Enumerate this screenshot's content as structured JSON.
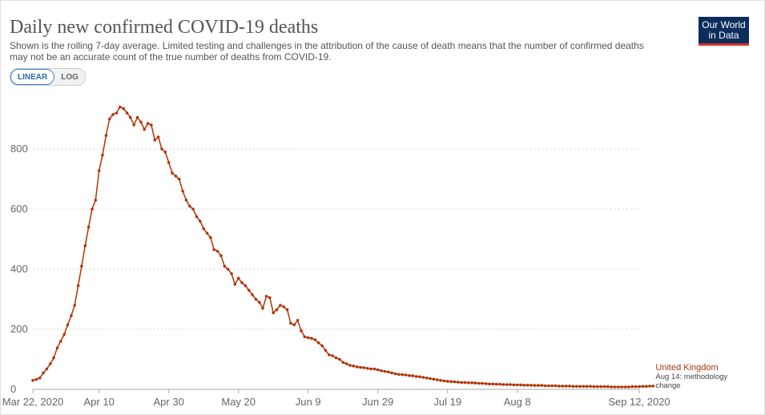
{
  "header": {
    "title": "Daily new confirmed COVID-19 deaths",
    "subtitle": "Shown is the rolling 7-day average. Limited testing and challenges in the attribution of the cause of death means that the number of confirmed deaths may not be an accurate count of the true number of deaths from COVID-19."
  },
  "toggle": {
    "linear_label": "LINEAR",
    "log_label": "LOG",
    "selected": "LINEAR"
  },
  "logo": {
    "line1": "Our World",
    "line2": "in Data",
    "bg_color": "#0b2d5b",
    "accent_color": "#d73027"
  },
  "colors": {
    "series": "#b13507",
    "grid": "#dddddd"
  },
  "chart_data": {
    "type": "line",
    "title": "Daily new confirmed COVID-19 deaths",
    "xlabel": "",
    "ylabel": "",
    "ylim": [
      0,
      1000
    ],
    "yticks": [
      0,
      200,
      400,
      600,
      800
    ],
    "x_start": "Mar 22, 2020",
    "x_ticks": [
      {
        "label": "Mar 22, 2020",
        "day": 0
      },
      {
        "label": "Apr 10",
        "day": 19
      },
      {
        "label": "Apr 30",
        "day": 39
      },
      {
        "label": "May 20",
        "day": 59
      },
      {
        "label": "Jun 9",
        "day": 79
      },
      {
        "label": "Jun 29",
        "day": 99
      },
      {
        "label": "Jul 19",
        "day": 119
      },
      {
        "label": "Aug 8",
        "day": 139
      },
      {
        "label": "Sep 12, 2020",
        "day": 174
      }
    ],
    "series": [
      {
        "name": "United Kingdom",
        "annotation": "Aug 14: methodology change",
        "annotation_line1": "Aug 14: methodology",
        "annotation_line2": "change",
        "start_day": 0,
        "values": [
          30,
          33,
          38,
          55,
          68,
          85,
          105,
          138,
          160,
          183,
          215,
          245,
          280,
          345,
          410,
          478,
          540,
          600,
          630,
          728,
          780,
          845,
          900,
          915,
          920,
          940,
          935,
          920,
          905,
          880,
          905,
          890,
          865,
          885,
          880,
          830,
          840,
          800,
          790,
          755,
          720,
          710,
          700,
          660,
          630,
          610,
          600,
          575,
          560,
          535,
          520,
          505,
          465,
          460,
          445,
          410,
          400,
          385,
          350,
          370,
          355,
          345,
          330,
          315,
          300,
          290,
          270,
          310,
          305,
          255,
          265,
          280,
          275,
          265,
          220,
          215,
          230,
          195,
          175,
          172,
          170,
          165,
          155,
          145,
          130,
          115,
          112,
          105,
          100,
          90,
          85,
          80,
          78,
          75,
          73,
          72,
          70,
          68,
          68,
          65,
          62,
          60,
          58,
          55,
          52,
          50,
          49,
          48,
          46,
          45,
          43,
          42,
          40,
          38,
          36,
          34,
          32,
          30,
          28,
          27,
          26,
          25,
          24,
          23,
          23,
          22,
          22,
          21,
          20,
          20,
          19,
          18,
          18,
          17,
          17,
          16,
          16,
          16,
          15,
          15,
          15,
          14,
          14,
          14,
          13,
          13,
          13,
          12,
          12,
          12,
          12,
          11,
          11,
          11,
          11,
          10,
          10,
          10,
          10,
          10,
          10,
          9,
          9,
          9,
          9,
          9,
          8,
          8,
          8,
          8,
          8,
          8,
          9,
          9,
          9,
          10,
          10,
          11,
          11
        ]
      }
    ],
    "legend": "right"
  }
}
